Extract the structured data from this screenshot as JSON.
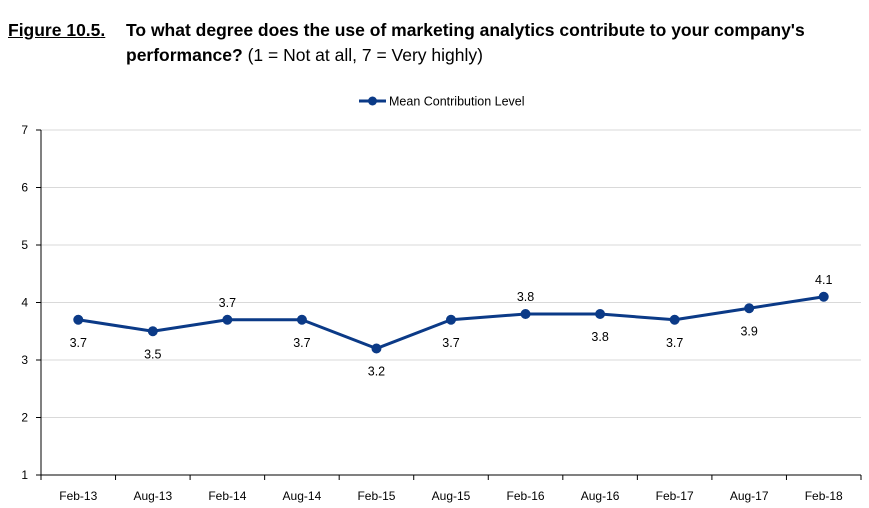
{
  "figure": {
    "label": "Figure 10.5",
    "label_suffix": ".",
    "question_line1": "To what degree does the use of marketing analytics contribute to your company's",
    "question_line2": "performance?",
    "scale_note": " (1 = Not at all, 7 = Very highly)"
  },
  "chart_data": {
    "type": "line",
    "title": "To what degree does the use of marketing analytics contribute to your company's performance? (1 = Not at all, 7 = Very highly)",
    "categories": [
      "Feb-13",
      "Aug-13",
      "Feb-14",
      "Aug-14",
      "Feb-15",
      "Aug-15",
      "Feb-16",
      "Aug-16",
      "Feb-17",
      "Aug-17",
      "Feb-18"
    ],
    "series": [
      {
        "name": "Mean Contribution Level",
        "values": [
          3.7,
          3.5,
          3.7,
          3.7,
          3.2,
          3.7,
          3.8,
          3.8,
          3.7,
          3.9,
          4.1
        ],
        "labels": [
          "3.7",
          "3.5",
          "3.7",
          "3.7",
          "3.2",
          "3.7",
          "3.8",
          "3.8",
          "3.7",
          "3.9",
          "4.1"
        ],
        "color": "#0b3a87"
      }
    ],
    "ylim": [
      1,
      7
    ],
    "yticks": [
      "1",
      "2",
      "3",
      "4",
      "5",
      "6",
      "7"
    ],
    "grid": true,
    "legend": "top-center",
    "gridcolor": "#d9d9d9"
  }
}
